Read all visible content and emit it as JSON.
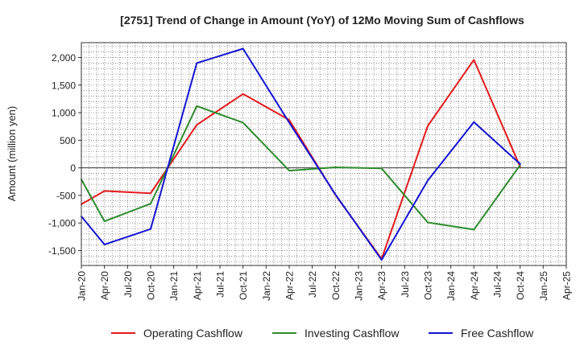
{
  "chart_data": {
    "type": "line",
    "title": "[2751]  Trend of Change in Amount (YoY) of 12Mo Moving Sum of Cashflows",
    "xlabel": "",
    "ylabel": "Amount (million yen)",
    "categories": [
      "Jan-20",
      "Apr-20",
      "Jul-20",
      "Oct-20",
      "Jan-21",
      "Apr-21",
      "Jul-21",
      "Oct-21",
      "Jan-22",
      "Apr-22",
      "Jul-22",
      "Oct-22",
      "Jan-23",
      "Apr-23",
      "Jul-23",
      "Oct-23",
      "Jan-24",
      "Apr-24",
      "Jul-24",
      "Oct-24",
      "Jan-25",
      "Apr-25"
    ],
    "yticks": [
      -1500,
      -1000,
      -500,
      0,
      500,
      1000,
      1500,
      2000
    ],
    "ytick_labels": [
      "-1,500",
      "-1,000",
      "-500",
      "0",
      "500",
      "1,000",
      "1,500",
      "2,000"
    ],
    "ylim": [
      -1770,
      2270
    ],
    "grid": true,
    "legend_position": "bottom",
    "series": [
      {
        "name": "Operating Cashflow",
        "color": "#e31a1c",
        "values": [
          -660,
          -420,
          null,
          -460,
          null,
          780,
          null,
          1340,
          null,
          870,
          null,
          -490,
          null,
          -1650,
          null,
          760,
          null,
          1960,
          null,
          20,
          null,
          null
        ]
      },
      {
        "name": "Investing Cashflow",
        "color": "#2e8b2e",
        "values": [
          -210,
          -970,
          null,
          -650,
          null,
          1120,
          null,
          820,
          null,
          -50,
          null,
          10,
          null,
          -10,
          null,
          -990,
          null,
          -1120,
          null,
          50,
          null,
          null
        ]
      },
      {
        "name": "Free Cashflow",
        "color": "#1414d2",
        "values": [
          -880,
          -1390,
          null,
          -1110,
          null,
          1900,
          null,
          2160,
          null,
          820,
          null,
          -480,
          null,
          -1670,
          null,
          -230,
          null,
          830,
          null,
          70,
          null,
          null
        ]
      }
    ]
  }
}
